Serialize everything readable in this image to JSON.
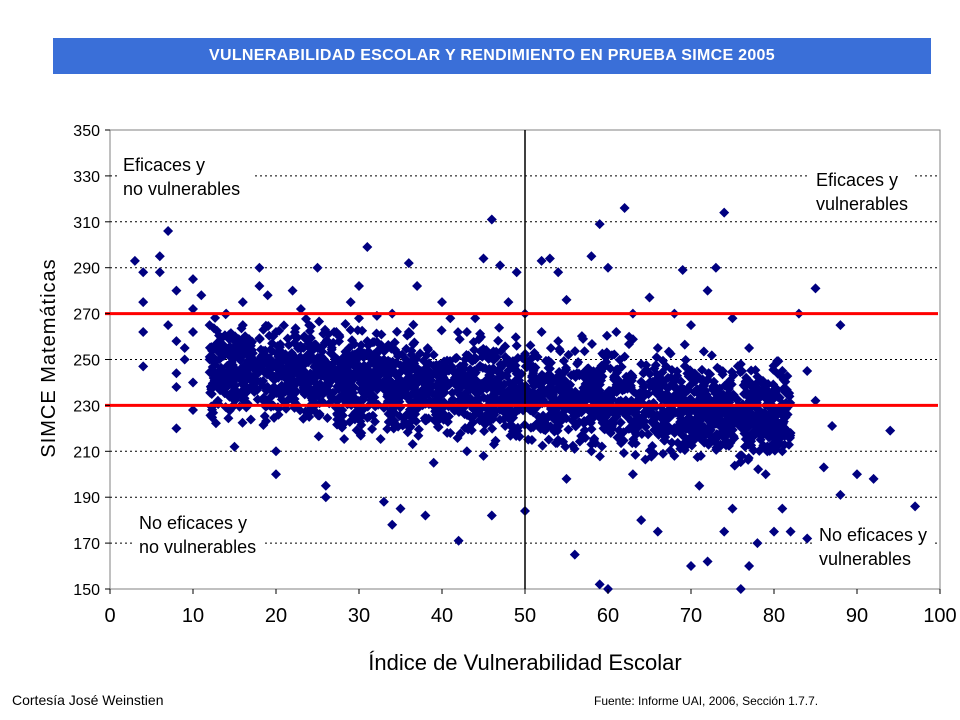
{
  "title": "VULNERABILIDAD ESCOLAR Y RENDIMIENTO EN PRUEBA SIMCE 2005",
  "credit": "Cortesía José Weinstien",
  "source": "Fuente: Informe UAI,  2006, Sección 1.7.7.",
  "colors": {
    "title_bg": "#3a6fd8",
    "points": "#000080",
    "ref_lines": "#ff0000",
    "divider": "#000000"
  },
  "chart_data": {
    "type": "scatter",
    "title": "VULNERABILIDAD ESCOLAR Y RENDIMIENTO EN PRUEBA SIMCE 2005",
    "xlabel": "Índice de Vulnerabilidad Escolar",
    "ylabel": "SIMCE Matemáticas",
    "xlim": [
      0,
      100
    ],
    "ylim": [
      150,
      350
    ],
    "xticks": [
      0,
      10,
      20,
      30,
      40,
      50,
      60,
      70,
      80,
      90,
      100
    ],
    "yticks": [
      150,
      170,
      190,
      210,
      230,
      250,
      270,
      290,
      310,
      330,
      350
    ],
    "grid": "horizontal dotted",
    "reference_lines": {
      "horizontal": [
        270,
        230
      ],
      "vertical": [
        50
      ]
    },
    "quadrant_labels": [
      {
        "line1": "Eficaces y",
        "line2": "no vulnerables",
        "position": "top-left"
      },
      {
        "line1": "Eficaces y",
        "line2": "vulnerables",
        "position": "top-right"
      },
      {
        "line1": "No eficaces y",
        "line2": "no vulnerables",
        "position": "bottom-left"
      },
      {
        "line1": "No eficaces y",
        "line2": "vulnerables",
        "position": "bottom-right"
      }
    ],
    "series": [
      {
        "marker": "diamond",
        "points": [
          [
            3,
            293
          ],
          [
            4,
            288
          ],
          [
            4,
            275
          ],
          [
            4,
            262
          ],
          [
            4,
            247
          ],
          [
            6,
            295
          ],
          [
            6,
            288
          ],
          [
            7,
            306
          ],
          [
            7,
            265
          ],
          [
            8,
            280
          ],
          [
            8,
            258
          ],
          [
            8,
            244
          ],
          [
            8,
            238
          ],
          [
            8,
            220
          ],
          [
            9,
            255
          ],
          [
            9,
            250
          ],
          [
            10,
            285
          ],
          [
            10,
            272
          ],
          [
            10,
            262
          ],
          [
            10,
            240
          ],
          [
            10,
            228
          ],
          [
            11,
            278
          ],
          [
            12,
            265
          ],
          [
            12,
            250
          ],
          [
            13,
            240
          ],
          [
            13,
            232
          ],
          [
            14,
            270
          ],
          [
            15,
            212
          ],
          [
            15,
            258
          ],
          [
            16,
            275
          ],
          [
            16,
            265
          ],
          [
            17,
            248
          ],
          [
            18,
            290
          ],
          [
            18,
            282
          ],
          [
            19,
            238
          ],
          [
            19,
            278
          ],
          [
            20,
            262
          ],
          [
            20,
            210
          ],
          [
            20,
            200
          ],
          [
            21,
            250
          ],
          [
            22,
            280
          ],
          [
            23,
            272
          ],
          [
            24,
            265
          ],
          [
            24,
            225
          ],
          [
            25,
            290
          ],
          [
            25,
            255
          ],
          [
            26,
            195
          ],
          [
            26,
            190
          ],
          [
            27,
            262
          ],
          [
            28,
            248
          ],
          [
            28,
            240
          ],
          [
            29,
            275
          ],
          [
            29,
            232
          ],
          [
            30,
            268
          ],
          [
            30,
            282
          ],
          [
            31,
            299
          ],
          [
            31,
            258
          ],
          [
            32,
            245
          ],
          [
            33,
            250
          ],
          [
            33,
            188
          ],
          [
            34,
            270
          ],
          [
            34,
            178
          ],
          [
            35,
            238
          ],
          [
            35,
            185
          ],
          [
            36,
            292
          ],
          [
            36,
            262
          ],
          [
            37,
            282
          ],
          [
            37,
            230
          ],
          [
            38,
            246
          ],
          [
            38,
            182
          ],
          [
            39,
            205
          ],
          [
            39,
            252
          ],
          [
            40,
            275
          ],
          [
            40,
            240
          ],
          [
            41,
            268
          ],
          [
            41,
            218
          ],
          [
            42,
            230
          ],
          [
            42,
            171
          ],
          [
            43,
            262
          ],
          [
            43,
            210
          ],
          [
            44,
            250
          ],
          [
            44,
            232
          ],
          [
            45,
            294
          ],
          [
            45,
            208
          ],
          [
            46,
            311
          ],
          [
            46,
            182
          ],
          [
            47,
            291
          ],
          [
            47,
            242
          ],
          [
            48,
            275
          ],
          [
            48,
            225
          ],
          [
            49,
            288
          ],
          [
            49,
            256
          ],
          [
            50,
            270
          ],
          [
            50,
            184
          ],
          [
            51,
            245
          ],
          [
            51,
            227
          ],
          [
            52,
            293
          ],
          [
            52,
            262
          ],
          [
            53,
            294
          ],
          [
            53,
            238
          ],
          [
            54,
            288
          ],
          [
            54,
            215
          ],
          [
            55,
            276
          ],
          [
            55,
            198
          ],
          [
            56,
            230
          ],
          [
            56,
            165
          ],
          [
            57,
            259
          ],
          [
            57,
            244
          ],
          [
            58,
            295
          ],
          [
            58,
            213
          ],
          [
            59,
            309
          ],
          [
            59,
            152
          ],
          [
            60,
            290
          ],
          [
            60,
            150
          ],
          [
            61,
            262
          ],
          [
            61,
            225
          ],
          [
            62,
            316
          ],
          [
            62,
            237
          ],
          [
            63,
            270
          ],
          [
            63,
            200
          ],
          [
            64,
            248
          ],
          [
            64,
            180
          ],
          [
            65,
            277
          ],
          [
            65,
            230
          ],
          [
            66,
            255
          ],
          [
            66,
            175
          ],
          [
            67,
            247
          ],
          [
            67,
            218
          ],
          [
            68,
            270
          ],
          [
            68,
            208
          ],
          [
            69,
            289
          ],
          [
            69,
            235
          ],
          [
            70,
            265
          ],
          [
            70,
            160
          ],
          [
            71,
            242
          ],
          [
            71,
            195
          ],
          [
            72,
            280
          ],
          [
            72,
            162
          ],
          [
            73,
            290
          ],
          [
            73,
            222
          ],
          [
            74,
            314
          ],
          [
            74,
            175
          ],
          [
            75,
            268
          ],
          [
            75,
            185
          ],
          [
            76,
            248
          ],
          [
            76,
            150
          ],
          [
            77,
            255
          ],
          [
            77,
            160
          ],
          [
            78,
            240
          ],
          [
            78,
            170
          ],
          [
            79,
            230
          ],
          [
            79,
            200
          ],
          [
            80,
            222
          ],
          [
            80,
            175
          ],
          [
            81,
            210
          ],
          [
            81,
            185
          ],
          [
            82,
            218
          ],
          [
            82,
            175
          ],
          [
            83,
            270
          ],
          [
            84,
            172
          ],
          [
            84,
            245
          ],
          [
            85,
            281
          ],
          [
            85,
            232
          ],
          [
            86,
            203
          ],
          [
            87,
            221
          ],
          [
            88,
            265
          ],
          [
            88,
            191
          ],
          [
            90,
            200
          ],
          [
            92,
            198
          ],
          [
            94,
            219
          ],
          [
            97,
            186
          ],
          [
            54,
            258
          ],
          [
            44,
            268
          ],
          [
            36,
            222
          ],
          [
            58,
            210
          ],
          [
            66,
            240
          ]
        ]
      }
    ]
  }
}
